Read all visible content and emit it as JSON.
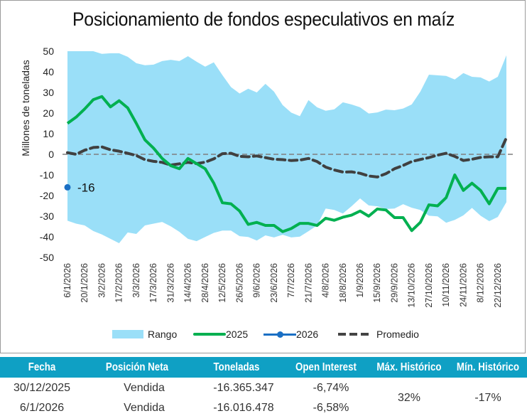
{
  "title": "Posicionamiento de fondos especulativos en maíz",
  "chart_data": {
    "type": "area+line",
    "title": "Posicionamiento de fondos especulativos en maíz",
    "xlabel": "",
    "ylabel": "Millones de toneladas",
    "ylim": [
      -50,
      50
    ],
    "yticks": [
      50,
      40,
      30,
      20,
      10,
      0,
      -10,
      -20,
      -30,
      -40,
      -50
    ],
    "xtick_labels": [
      "6/1/2026",
      "20/1/2026",
      "3/2/2026",
      "17/2/2026",
      "3/3/2026",
      "17/3/2026",
      "31/3/2026",
      "14/4/2026",
      "28/4/2026",
      "12/5/2026",
      "26/5/2026",
      "9/6/2026",
      "23/6/2026",
      "7/7/2026",
      "21/7/2026",
      "4/8/2026",
      "18/8/2026",
      "1/9/2026",
      "15/9/2026",
      "29/9/2026",
      "13/10/2026",
      "27/10/2026",
      "10/11/2026",
      "24/11/2026",
      "8/12/2026",
      "22/12/2026"
    ],
    "n_points": 52,
    "tick_every": 2,
    "zero_line": true,
    "series": [
      {
        "name": "Rango",
        "kind": "band",
        "color": "#9ADFF8",
        "upper": [
          50,
          50,
          50,
          50,
          48.7,
          49,
          49,
          47.3,
          44.2,
          43.2,
          43.5,
          45.2,
          45.8,
          45.2,
          47.6,
          44.9,
          42.5,
          44.6,
          38.4,
          32.6,
          29.5,
          31.8,
          30,
          34.2,
          30.4,
          23.9,
          20.2,
          18.5,
          26.3,
          22.8,
          21.1,
          21.8,
          25.2,
          24.2,
          22.8,
          19.8,
          20.3,
          21.7,
          21.4,
          22.2,
          24.2,
          30.4,
          38.6,
          38.3,
          38,
          36.3,
          39.4,
          37.6,
          37.3,
          35.3,
          37.6,
          48
        ],
        "lower": [
          -32.2,
          -33.6,
          -34.5,
          -37.2,
          -38.9,
          -41,
          -43.1,
          -37.9,
          -38.6,
          -34.5,
          -33.6,
          -32.8,
          -34.9,
          -37.6,
          -41,
          -42.1,
          -40.1,
          -38.1,
          -37,
          -37,
          -39.7,
          -40.1,
          -41.8,
          -39.3,
          -40.3,
          -39,
          -40.3,
          -39.9,
          -37.3,
          -34.5,
          -26.3,
          -27,
          -28.7,
          -25.2,
          -21.4,
          -24.8,
          -25.2,
          -26.5,
          -26.3,
          -24.2,
          -25.9,
          -27,
          -29.8,
          -30.1,
          -33.2,
          -31.8,
          -29.6,
          -26,
          -29.8,
          -32.4,
          -30.4,
          -23.2
        ]
      },
      {
        "name": "2025",
        "kind": "line",
        "color": "#00B050",
        "values": [
          15,
          18,
          22,
          26.5,
          28,
          23,
          26,
          22.5,
          15,
          7,
          3,
          -2,
          -5.5,
          -7,
          -2,
          -4.5,
          -7,
          -14,
          -23.5,
          -24,
          -27.5,
          -34,
          -33,
          -34.5,
          -34.5,
          -37.5,
          -36,
          -33.5,
          -33.5,
          -34.5,
          -31,
          -32,
          -30.5,
          -29.5,
          -27.5,
          -30,
          -26.5,
          -27,
          -30.7,
          -30.7,
          -37,
          -33,
          -24.5,
          -25,
          -21,
          -10,
          -17.5,
          -14,
          -17.5,
          -24,
          -16.5,
          -16.5
        ]
      },
      {
        "name": "2026",
        "kind": "line-marker",
        "color": "#1A6FC4",
        "values": [
          -16
        ],
        "data_label": "-16"
      },
      {
        "name": "Promedio",
        "kind": "dashed",
        "color": "#404040",
        "values": [
          0.8,
          0,
          2,
          3.3,
          3.6,
          2.2,
          1.5,
          0.5,
          -0.6,
          -2.6,
          -3.4,
          -3.9,
          -5.2,
          -4.6,
          -3.9,
          -4.5,
          -3.8,
          -2.2,
          0.3,
          0.5,
          -1,
          -1.2,
          -0.8,
          -1.6,
          -2.4,
          -2.6,
          -3,
          -2.8,
          -2,
          -3.5,
          -6.2,
          -7.6,
          -8.6,
          -8.5,
          -9.2,
          -10.5,
          -11,
          -9.4,
          -7,
          -5.4,
          -3.5,
          -2.5,
          -1.6,
          -0.4,
          0.5,
          -1,
          -3,
          -2.4,
          -1.5,
          -1.2,
          -1.2,
          8
        ]
      }
    ],
    "legend": [
      {
        "label": "Rango",
        "type": "band"
      },
      {
        "label": "2025",
        "type": "line"
      },
      {
        "label": "2026",
        "type": "line-marker"
      },
      {
        "label": "Promedio",
        "type": "dashed"
      }
    ],
    "legend_position": "bottom"
  },
  "table": {
    "headers": [
      "Fecha",
      "Posición Neta",
      "Toneladas",
      "Open Interest",
      "Máx. Histórico",
      "Mín. Histórico"
    ],
    "rows": [
      {
        "fecha": "30/12/2025",
        "posicion": "Vendida",
        "toneladas": "-16.365.347",
        "open_interest": "-6,74%"
      },
      {
        "fecha": "6/1/2026",
        "posicion": "Vendida",
        "toneladas": "-16.016.478",
        "open_interest": "-6,58%"
      }
    ],
    "max_historico": "32%",
    "min_historico": "-17%"
  }
}
